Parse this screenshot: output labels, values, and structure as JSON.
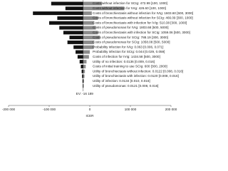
{
  "chart_data": {
    "type": "tornado",
    "categories": [
      "Costs without infection for SCIg: 472.99 [100, 1000]",
      "Costs without infection for IVIg: 426.60 [100, 1000]",
      "Costs of bronchiectasis without infection for IVIg: 1603.60 [500, 3000]",
      "Costs of bronchiectasis without infection for SCIg: 466.09 [300, 1000]",
      "Costs of bronchiectasis with infection for IVIg: 510.38 [300, 1000]",
      "Costs of pseudomonas for IVIg: 1803.68 [500, 5000]",
      "Costs of bronchiectasis with infection for SCIg: 1059.06 [500, 3000]",
      "Costs of pseudomonas for SCIg: 788.19 [300, 3000]",
      "Costs of pseudomonas for SCIg: 1058.08 [500, 5000]",
      "Probability infection for IVIg: 0.063 [0.006, 0.071]",
      "Probability infection for SCIg: 0.044 [0.029, 0.059]",
      "Costs of infection for IVIg: 1434.58 [500, 3000]",
      "Utility of no infection: 0.0136 [0.009, 0.016]",
      "Costs of initial training to use SCIg: 600 [300, 2000]",
      "Utility of bronchiectasis without infection: 0.0122 [0.008, 0.016]",
      "Utility of bronchiectasis with infection: 0.0120 [0.008, 0.016]",
      "Utility of infection: 0.0134 [0.010, 0.016]",
      "Utility of pseudomonas: 0.0121 [0.008, 0.016]"
    ],
    "series": [
      {
        "color": "#111111",
        "values": [
          -95000,
          -60000,
          -140000,
          -80000,
          -100000,
          -75000,
          -65000,
          -50000,
          -55000,
          -40000,
          -35000,
          -30000,
          -25000,
          -22000,
          -20000,
          -19000,
          -18000,
          -17500
        ]
      },
      {
        "color": "#8c8c8c",
        "values": [
          30000,
          85000,
          5000,
          20000,
          10000,
          15000,
          20000,
          25000,
          10000,
          10000,
          0,
          -2000,
          -8000,
          -10000,
          -12000,
          -13000,
          -14000,
          -15000
        ]
      }
    ],
    "ev": {
      "value": -16189,
      "label": "EV: -16 189"
    },
    "xlabel": "ICER",
    "xlim": [
      -200000,
      200000
    ],
    "xticks": [
      {
        "value": -200000,
        "label": "-200 000"
      },
      {
        "value": -100000,
        "label": "-100 000"
      },
      0,
      {
        "value": 100000,
        "label": "100 000"
      },
      {
        "value": 200000,
        "label": "200 000"
      }
    ]
  }
}
